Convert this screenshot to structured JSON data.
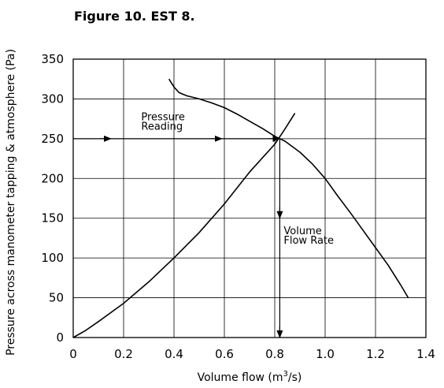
{
  "chart_data": {
    "type": "line",
    "title": "Figure 10. EST 8.",
    "xlabel": "Volume flow (m³/s)",
    "ylabel": "Pressure across manometer tapping & atmosphere (Pa)",
    "xlim": [
      0,
      1.4
    ],
    "ylim": [
      0,
      350
    ],
    "x_ticks": [
      "0",
      "0.2",
      "0.4",
      "0.6",
      "0.8",
      "1.0",
      "1.2",
      "1.4"
    ],
    "y_ticks": [
      "0",
      "50",
      "100",
      "150",
      "200",
      "250",
      "300",
      "350"
    ],
    "grid": true,
    "series": [
      {
        "x": [
          0.38,
          0.4,
          0.42,
          0.45,
          0.5,
          0.55,
          0.6,
          0.65,
          0.7,
          0.75,
          0.8,
          0.84,
          0.9,
          0.95,
          1.0,
          1.05,
          1.1,
          1.15,
          1.2,
          1.25,
          1.3,
          1.33
        ],
        "y": [
          325,
          315,
          308,
          304,
          300,
          295,
          289,
          281,
          272,
          263,
          253,
          247,
          233,
          218,
          200,
          178,
          157,
          135,
          113,
          91,
          66,
          50
        ]
      },
      {
        "x": [
          0.0,
          0.05,
          0.1,
          0.2,
          0.3,
          0.4,
          0.5,
          0.6,
          0.7,
          0.8,
          0.84,
          0.88
        ],
        "y": [
          0,
          9,
          20,
          43,
          70,
          100,
          132,
          168,
          208,
          243,
          262,
          282
        ]
      }
    ],
    "annotations": {
      "pressure_reading": "Pressure\nReading",
      "volume_flow_rate": "Volume\nFlow Rate"
    },
    "guides": {
      "operating_point": {
        "x": 0.82,
        "y": 250
      }
    }
  }
}
